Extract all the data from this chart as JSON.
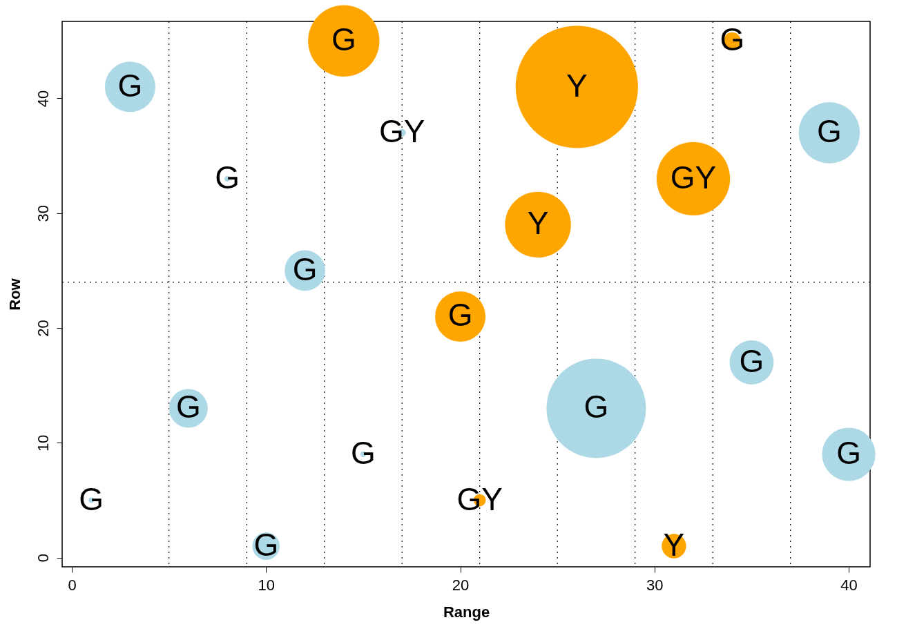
{
  "chart_data": {
    "type": "bubble",
    "xlabel": "Range",
    "ylabel": "Row",
    "xlim": [
      -0.5,
      41.1
    ],
    "ylim": [
      -0.8,
      46.7
    ],
    "xticks": [
      0,
      10,
      20,
      30,
      40
    ],
    "yticks": [
      0,
      10,
      20,
      30,
      40
    ],
    "grid": false,
    "legend": false,
    "series": [
      {
        "color": "#add8e6",
        "x": [
          3,
          17,
          39,
          12,
          35,
          27,
          6,
          40,
          10
        ],
        "values": [
          41,
          37,
          37,
          25,
          17,
          13,
          13,
          9,
          1
        ],
        "sizes": [
          0.17,
          0.004,
          0.25,
          0.11,
          0.13,
          0.66,
          0.1,
          0.19,
          0.05
        ],
        "value_labels": [
          "G",
          "GY",
          "G",
          "G",
          "G",
          "G",
          "G",
          "G",
          "G"
        ]
      },
      {
        "color": "#ffa500",
        "x": [
          14,
          26,
          34,
          32,
          24,
          20,
          21,
          31
        ],
        "values": [
          45,
          41,
          45,
          33,
          29,
          21,
          5,
          1
        ],
        "sizes": [
          0.34,
          1,
          0.02,
          0.36,
          0.29,
          0.17,
          0.01,
          0.04
        ],
        "value_labels": [
          "G",
          "Y",
          "G",
          "GY",
          "Y",
          "G",
          "GY",
          "Y"
        ]
      },
      {
        "color": "#add8e6",
        "x": [
          8,
          15,
          1
        ],
        "values": [
          33,
          9,
          5
        ],
        "sizes": [
          0.002,
          0.002,
          0.002
        ],
        "value_labels": [
          "G",
          "G",
          "G"
        ]
      }
    ],
    "ref_lines": [
      {
        "axis": "x",
        "value": 5,
        "line_style": "dotted"
      },
      {
        "axis": "x",
        "value": 9,
        "line_style": "dotted"
      },
      {
        "axis": "x",
        "value": 13,
        "line_style": "dotted"
      },
      {
        "axis": "x",
        "value": 17,
        "line_style": "dotted"
      },
      {
        "axis": "x",
        "value": 21,
        "line_style": "dotted"
      },
      {
        "axis": "x",
        "value": 25,
        "line_style": "dotted"
      },
      {
        "axis": "x",
        "value": 29,
        "line_style": "dotted"
      },
      {
        "axis": "x",
        "value": 33,
        "line_style": "dotted"
      },
      {
        "axis": "x",
        "value": 37,
        "line_style": "dotted"
      },
      {
        "axis": "y",
        "value": 24,
        "line_style": "dotted"
      }
    ]
  }
}
